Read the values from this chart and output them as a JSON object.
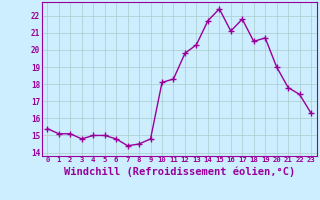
{
  "x": [
    0,
    1,
    2,
    3,
    4,
    5,
    6,
    7,
    8,
    9,
    10,
    11,
    12,
    13,
    14,
    15,
    16,
    17,
    18,
    19,
    20,
    21,
    22,
    23
  ],
  "y": [
    15.4,
    15.1,
    15.1,
    14.8,
    15.0,
    15.0,
    14.8,
    14.4,
    14.5,
    14.8,
    18.1,
    18.3,
    19.8,
    20.3,
    21.7,
    22.4,
    21.1,
    21.8,
    20.5,
    20.7,
    19.0,
    17.8,
    17.4,
    16.3
  ],
  "line_color": "#990099",
  "marker": "+",
  "marker_size": 4,
  "marker_color": "#990099",
  "bg_color": "#cceeff",
  "grid_color": "#bbdddd",
  "tick_color": "#990099",
  "xlabel": "Windchill (Refroidissement éolien,°C)",
  "xlabel_fontsize": 7.5,
  "ylabel_ticks": [
    14,
    15,
    16,
    17,
    18,
    19,
    20,
    21,
    22
  ],
  "xlim": [
    -0.5,
    23.5
  ],
  "ylim": [
    13.8,
    22.8
  ],
  "xticks": [
    0,
    1,
    2,
    3,
    4,
    5,
    6,
    7,
    8,
    9,
    10,
    11,
    12,
    13,
    14,
    15,
    16,
    17,
    18,
    19,
    20,
    21,
    22,
    23
  ],
  "line_width": 1.0
}
